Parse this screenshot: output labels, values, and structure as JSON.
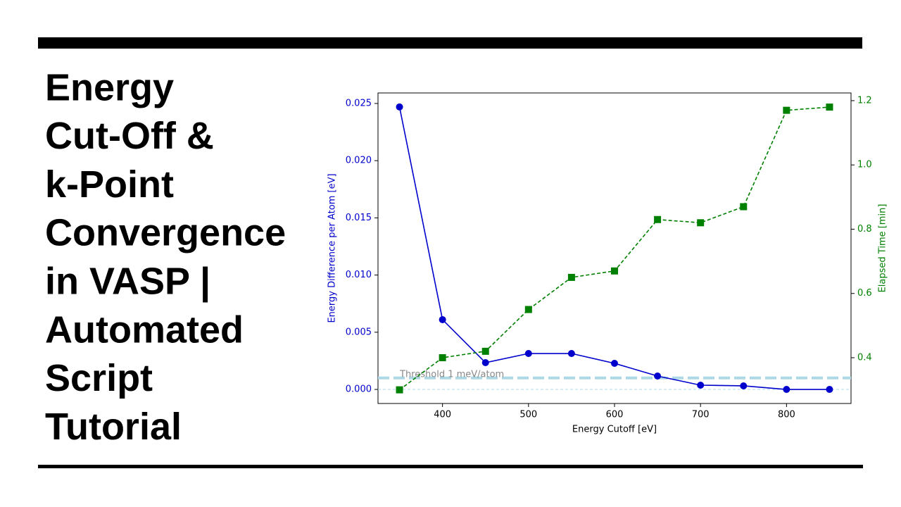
{
  "slide": {
    "title_lines": [
      "Energy",
      "Cut-Off &",
      "k-Point",
      "Convergence",
      "in VASP |",
      "Automated",
      "Script",
      "Tutorial"
    ]
  },
  "chart_data": {
    "type": "line",
    "x_label": "Energy Cutoff [eV]",
    "y_label": "Energy Difference per Atom [eV]",
    "y2_label": "Elapsed Time [min]",
    "x": [
      350,
      400,
      450,
      500,
      550,
      600,
      650,
      700,
      750,
      800,
      850
    ],
    "series": [
      {
        "name": "Energy Difference per Atom [eV]",
        "color": "#0000cd",
        "linestyle": "solid",
        "marker": "circle",
        "values": [
          0.0247,
          0.0061,
          0.00234,
          0.00314,
          0.00314,
          0.00228,
          0.00117,
          0.00037,
          0.00031,
          0,
          0
        ]
      },
      {
        "name": "Elapsed Time [min]",
        "color": "#008000",
        "linestyle": "dashed",
        "marker": "square",
        "axis": "y2",
        "values": [
          0.3,
          0.4,
          0.42,
          0.55,
          0.65,
          0.67,
          0.83,
          0.82,
          0.87,
          1.17,
          1.18
        ]
      }
    ],
    "hlines": [
      {
        "value": 0.001,
        "label": "Threshold 1 meV/atom",
        "color": "#add8e6",
        "width": 4
      },
      {
        "value": 0,
        "color": "#add8e6",
        "width": 1
      }
    ],
    "xlim": [
      325,
      875
    ],
    "xticks": [
      400,
      500,
      600,
      700,
      800
    ],
    "ylim": [
      -0.00123,
      0.02592
    ],
    "yticks": [
      {
        "value": 0,
        "label": "0.000"
      },
      0.005,
      {
        "value": 0.01,
        "label": "0.010"
      },
      0.015,
      {
        "value": 0.02,
        "label": "0.020"
      },
      0.025
    ],
    "y2lim": [
      0.2575,
      1.224
    ],
    "y2ticks": [
      0.4,
      0.6,
      0.8,
      {
        "value": 1,
        "label": "1.0"
      },
      1.2
    ]
  }
}
